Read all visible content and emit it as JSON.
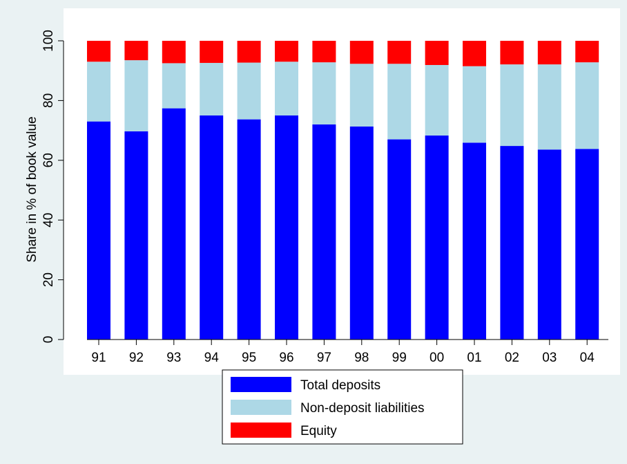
{
  "chart_data": {
    "type": "bar",
    "stacked": true,
    "categories": [
      "91",
      "92",
      "93",
      "94",
      "95",
      "96",
      "97",
      "98",
      "99",
      "00",
      "01",
      "02",
      "03",
      "04"
    ],
    "series": [
      {
        "name": "Total deposits",
        "color": "#0000ff",
        "values": [
          73.0,
          69.7,
          77.4,
          75.0,
          73.7,
          75.0,
          72.0,
          71.3,
          67.0,
          68.3,
          65.9,
          64.8,
          63.6,
          63.8
        ]
      },
      {
        "name": "Non-deposit liabilities",
        "color": "#add8e6",
        "values": [
          20.0,
          23.8,
          15.1,
          17.6,
          19.0,
          18.0,
          20.8,
          21.0,
          25.3,
          23.6,
          25.6,
          27.3,
          28.5,
          29.0
        ]
      },
      {
        "name": "Equity",
        "color": "#ff0000",
        "values": [
          7.0,
          6.5,
          7.5,
          7.4,
          7.3,
          7.0,
          7.2,
          7.7,
          7.7,
          8.1,
          8.5,
          7.9,
          7.9,
          7.2
        ]
      }
    ],
    "ylabel": "Share in % of book value",
    "xlabel": "",
    "ylim": [
      0,
      100
    ],
    "yticks": [
      0,
      20,
      40,
      60,
      80,
      100
    ],
    "grid": false,
    "legend_position": "bottom-center"
  }
}
